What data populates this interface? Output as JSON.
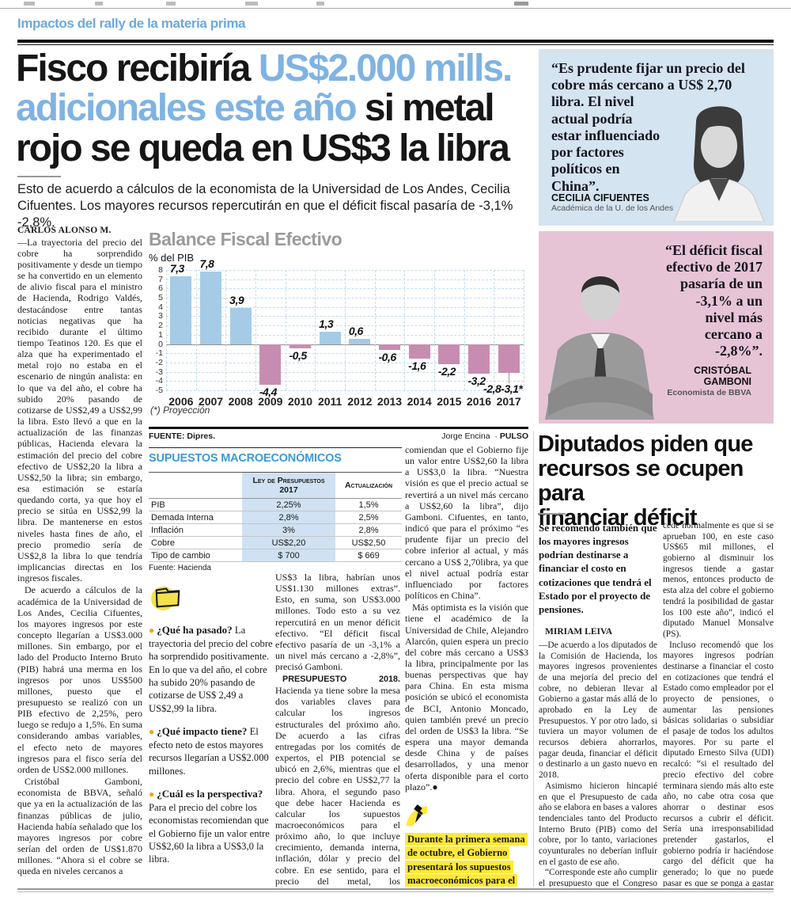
{
  "colors": {
    "accent_blue": "#7fb3e3",
    "kicker_blue": "#6ca9de",
    "table_title_blue": "#3d9ad3",
    "quote1_bg": "#d4e4f0",
    "quote2_bg": "#e6c4d6",
    "bar_positive": "#a5cbe7",
    "bar_negative": "#c78db1",
    "highlight_yellow": "#ffe83c",
    "bullet_orange": "#f1a315"
  },
  "page": {
    "kicker": "Impactos del rally de la materia prima",
    "headline_lines": [
      [
        {
          "t": "Fisco recibiría ",
          "blue": false
        },
        {
          "t": "US$2.000 mills.",
          "blue": true
        }
      ],
      [
        {
          "t": "adicionales este año",
          "blue": true
        },
        {
          "t": " si metal",
          "blue": false
        }
      ],
      [
        {
          "t": "rojo se queda en US$3 la libra",
          "blue": false
        }
      ]
    ],
    "deck": "Esto de acuerdo a cálculos de la economista de la Universidad de Los Andes, Cecilia Cifuentes. Los mayores recursos repercutirán en que el déficit fiscal pasaría de -3,1% -2,8%."
  },
  "chart_data": {
    "type": "bar",
    "title": "Balance Fiscal Efectivo",
    "ylabel": "% del PIB",
    "categories": [
      "2006",
      "2007",
      "2008",
      "2009",
      "2010",
      "2011",
      "2012",
      "2013",
      "2014",
      "2015",
      "2016",
      "2017"
    ],
    "values": [
      7.3,
      7.8,
      3.9,
      -4.4,
      -0.5,
      1.3,
      0.6,
      -0.6,
      -1.6,
      -2.2,
      -3.2,
      -3.1
    ],
    "value_labels": [
      "7,3",
      "7,8",
      "3,9",
      "-4,4",
      "-0,5",
      "1,3",
      "0,6",
      "-0,6",
      "-1,6",
      "-2,2",
      "-3,2",
      "-2,8-3,1*"
    ],
    "ylim": [
      -5,
      8
    ],
    "grid": true,
    "footnote": "(*) Proyección",
    "source": "FUENTE: Dipres.",
    "credit_name": "Jorge Encina",
    "credit_brand": "PULSO"
  },
  "macro_table": {
    "title": "SUPUESTOS MACROECONÓMICOS",
    "col_headers": [
      "Ley de Presupuestos 2017",
      "Actualización"
    ],
    "rows": [
      {
        "label": "PIB",
        "v1": "2,25%",
        "v2": "1,5%"
      },
      {
        "label": "Demada Interna",
        "v1": "2,8%",
        "v2": "2,5%"
      },
      {
        "label": "Inflación",
        "v1": "3%",
        "v2": "2,8%"
      },
      {
        "label": "Cobre",
        "v1": "US$2,20",
        "v2": "US$2,50"
      },
      {
        "label": "Tipo de cambio",
        "v1": "$ 700",
        "v2": "$ 669"
      }
    ],
    "source": "Fuente: Hacienda"
  },
  "main_article": {
    "byline": "CARLOS ALONSO M.",
    "col1": [
      {
        "text": "—La trayectoria del precio del cobre ha sorprendido positivamente y desde un tiempo se ha convertido en un elemento de alivio fiscal para el ministro de Hacienda, Rodrigo Valdés, destacándose entre tantas noticias negativas que ha recibido durante el último tiempo Teatinos 120. Es que el alza que ha experimentado el metal rojo no estaba en el escenario de ningún analista: en lo que va del año, el cobre ha subido 20% pasando de cotizarse de US$2,49 a US$2,99 la libra. Esto llevó a que en la actualización de las finanzas públicas, Hacienda elevara la estimación del precio del cobre efectivo de US$2,20 la libra a US$2,50 la libra; sin embargo, esa estimación se estaría quedando corta, ya que hoy el precio se sitúa en US$2,99 la libra. De mantenerse en estos niveles hasta fines de año, el precio promedio sería de US$2,8 la libra lo que tendría implicancias directas en los ingresos fiscales."
      },
      {
        "text": "De acuerdo a cálculos de la académica de la Universidad de Los Andes, Cecilia Cifuentes, los mayores ingresos por este concepto llegarían a US$3.000 millones. Sin embargo, por el lado del Producto Interno Bruto (PIB) habrá una merma en los ingresos por unos US$500 millones, puesto que el presupuesto se realizó con un PIB efectivo de 2,25%, pero luego se redujo a 1,5%. En suma considerando ambas variables, el efecto neto de mayores ingresos para el fisco sería del orden de US$2.000 millones."
      },
      {
        "text": "Cristóbal Gamboni, economista de BBVA, señaló que ya en la actualización de las finanzas públicas de julio, Hacienda había señalado que los mayores ingresos por cobre serían del orden de US$1.870 millones. “Ahora si el cobre se queda en niveles cercanos a"
      }
    ],
    "qa": [
      {
        "q": "¿Qué ha pasado?",
        "a": "La trayectoria del precio del cobre ha sorprendido positivamente. En lo que va del año, el cobre ha subido 20% pasando de cotizarse de US$ 2,49 a US$2,99 la libra."
      },
      {
        "q": "¿Qué impacto tiene?",
        "a": "El efecto neto de estos mayores recursos llegarían a US$2.000 millones."
      },
      {
        "q": "¿Cuál es la perspectiva?",
        "a": "Para el precio del cobre los economistas recomiendan que el Gobierno fije un valor entre US$2,60 la libra a US$3,0 la libra."
      }
    ],
    "col3": [
      {
        "text": "US$3 la libra, habrían unos US$1.130 millones extras”. Esto, en suma, son US$3.000 millones. Todo esto a su vez repercutirá en un menor déficit efectivo. “El déficit fiscal efectivo pasaría de un -3,1% a un nivel más cercano a -2,8%”, precisó Gamboni."
      },
      {
        "lead": "PRESUPUESTO 2018.",
        "text": "Hacienda ya tiene sobre la mesa dos variables claves para calcular los ingresos estructurales del próximo año. De acuerdo a las cifras entregadas por los comités de expertos, el PIB potencial se ubicó en 2,6%, mientras que el precio del cobre en US$2,77 la libra. Ahora, el segundo paso que debe hacer Hacienda es calcular los supuestos macroeconómicos para el próximo año, lo que incluye crecimiento, demanda interna, inflación, dólar y precio del cobre. En ese sentido, para el precio del metal, los economistas re-"
      }
    ],
    "col4": [
      {
        "text": "comiendan que el Gobierno fije un valor entre US$2,60 la libra a US$3,0 la libra. “Nuestra visión es que el precio actual se revertirá a un nivel más cercano a US$2,60 la libra”, dijo Gamboni. Cifuentes, en tanto, indicó que para el próximo “es prudente fijar un precio del cobre inferior al actual, y más cercano a US$ 2,70libra, ya que el nivel actual podría estar influenciado por factores políticos en China”."
      },
      {
        "text": "Más optimista es la visión que tiene el académico de la Universidad de Chile, Alejandro Alarcón, quien espera un precio del cobre más cercano a US$3 la libra, principalmente por las buenas perspectivas que hay para China. En esta misma posición se ubicó el economista de BCI, Antonio Moncado, quien también prevé un precio del orden de US$3 la libra. “Se espera una mayor demanda desde China y de países desarrollados, y una menor oferta disponible para el corto plazo”.●"
      }
    ],
    "note": "Durante la primera semana de octubre, el Gobierno presentará los supuestos macroeconómicos para el próximo año."
  },
  "quotes": [
    {
      "text": "“Es prudente fijar un precio del cobre más cercano a US$ 2,70 libra. El nivel actual podría estar influenciado por factores políticos en China”.",
      "name": "CECILIA CIFUENTES",
      "role": "Académica de la U. de los Andes"
    },
    {
      "text": "“El déficit fiscal efectivo de 2017 pasaría de un -3,1% a un nivel más cercano a -2,8%”.",
      "name": "CRISTÓBAL GAMBONI",
      "role": "Economista de BBVA"
    }
  ],
  "side_article": {
    "headline_lines": [
      "Diputados piden que",
      "recursos se ocupen para",
      "financiar déficit"
    ],
    "lede": "Se recomendó también que los mayores ingresos podrían destinarse a financiar el costo en cotizaciones que tendrá el Estado por el proyecto de pensiones.",
    "byline": "MIRIAM LEIVA",
    "left_paragraphs": [
      {
        "text": "—De acuerdo a los diputados de la Comisión de Hacienda, los mayores ingresos provenientes de una mejoría del precio del cobre, no debieran llevar al Gobierno a gastar más allá de lo aprobado en la Ley de Presupuestos. Y por otro lado, si tuviera un mayor volumen de recursos debiera ahorrarlos, pagar deuda, financiar el déficit o destinarlo a un gasto nuevo en 2018."
      },
      {
        "text": "Asimismo hicieron hincapié en que el Presupuesto de cada año se elabora en bases a valores tendenciales tanto del Producto Interno Bruto (PIB) como del cobre, por lo tanto, variaciones coyunturales no deberían influir en el gasto de ese año."
      },
      {
        "text": "“Corresponde este año cumplir el presupuesto que el Congreso aprobó. Como lo que su-"
      }
    ],
    "right_paragraphs": [
      {
        "text": "cede normalmente es que si se aprueban 100, en este caso US$65 mil millones, el gobierno al disminuir los ingresos tiende a gastar menos, entonces producto de esta alza del cobre el gobierno tendrá la posibilidad de gastar los 100 este año”, indicó el diputado Manuel Monsalve (PS)."
      },
      {
        "text": "Incluso recomendó que los mayores ingresos podrían destinarse a financiar el costo en cotizaciones que tendrá el Estado como empleador por el proyecto de pensiones, o aumentar las pensiones básicas solidarias o subsidiar el pasaje de todos los adultos mayores. Por su parte el diputado Ernesto Silva (UDI) recalcó: “si el resultado del precio efectivo del cobre terminara siendo más alto este año, no cabe otra cosa que ahorrar o destinar esos recursos a cubrir el déficit. Sería una irresponsabilidad pretender gastarlos, el gobierno podría ir haciéndose cargo del déficit que ha generado; lo que no puede pasar es que se ponga a gastar hoy con recursos que no están contemplados”. ●"
      }
    ]
  }
}
